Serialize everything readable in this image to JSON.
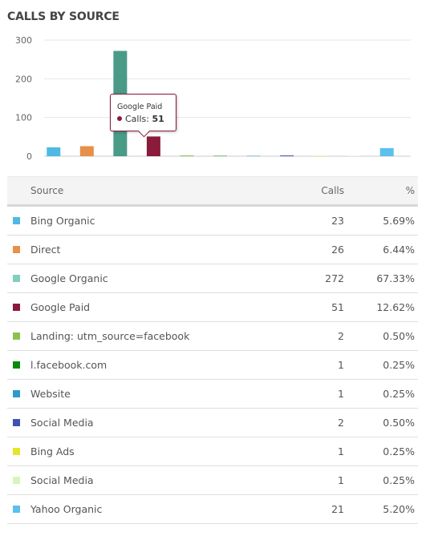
{
  "title": "CALLS BY SOURCE",
  "chart_data": {
    "type": "bar",
    "categories": [
      "Bing Organic",
      "Direct",
      "Google Organic",
      "Google Paid",
      "Landing: utm_source=facebook",
      "l.facebook.com",
      "Website",
      "Social Media",
      "Bing Ads",
      "Social Media",
      "Yahoo Organic"
    ],
    "values": [
      23,
      26,
      272,
      51,
      2,
      1,
      1,
      2,
      1,
      1,
      21
    ],
    "colors": [
      "#4fb8e3",
      "#e8904a",
      "#82cdbd",
      "#8b1b3a",
      "#8cc152",
      "#0a8a0a",
      "#2f99c9",
      "#3f51b5",
      "#e5e52a",
      "#d7f5b8",
      "#5bc0eb"
    ],
    "highlight_index": 3,
    "highlight_colors": {
      "2": "#4a9a88"
    },
    "yticks": [
      0,
      100,
      200,
      300
    ],
    "ylim": [
      0,
      300
    ],
    "grid": true
  },
  "tooltip": {
    "title": "Google Paid",
    "label": "Calls:",
    "value": "51"
  },
  "table": {
    "headers": {
      "source": "Source",
      "calls": "Calls",
      "pct": "%"
    },
    "rows": [
      {
        "source": "Bing Organic",
        "calls": "23",
        "pct": "5.69%",
        "color": "#4fb8e3"
      },
      {
        "source": "Direct",
        "calls": "26",
        "pct": "6.44%",
        "color": "#e8904a"
      },
      {
        "source": "Google Organic",
        "calls": "272",
        "pct": "67.33%",
        "color": "#82cdbd"
      },
      {
        "source": "Google Paid",
        "calls": "51",
        "pct": "12.62%",
        "color": "#8b1b3a"
      },
      {
        "source": "Landing: utm_source=facebook",
        "calls": "2",
        "pct": "0.50%",
        "color": "#8cc152"
      },
      {
        "source": "l.facebook.com",
        "calls": "1",
        "pct": "0.25%",
        "color": "#0a8a0a"
      },
      {
        "source": "Website",
        "calls": "1",
        "pct": "0.25%",
        "color": "#2f99c9"
      },
      {
        "source": "Social Media",
        "calls": "2",
        "pct": "0.50%",
        "color": "#3f51b5"
      },
      {
        "source": "Bing Ads",
        "calls": "1",
        "pct": "0.25%",
        "color": "#e5e52a"
      },
      {
        "source": "Social Media",
        "calls": "1",
        "pct": "0.25%",
        "color": "#d7f5b8"
      },
      {
        "source": "Yahoo Organic",
        "calls": "21",
        "pct": "5.20%",
        "color": "#5bc0eb"
      }
    ]
  }
}
